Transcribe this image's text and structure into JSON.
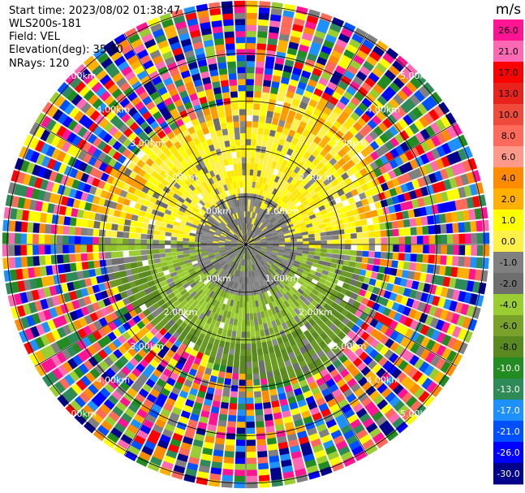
{
  "info": {
    "start_time": "Start time: 2023/08/02 01:38:47",
    "instrument": "WLS200s-181",
    "field": "Field: VEL",
    "elevation": "Elevation(deg): 35.30",
    "nrays": "NRays: 120"
  },
  "chart_data": {
    "type": "heatmap",
    "projection": "polar-ppi",
    "field": "VEL",
    "units": "m/s",
    "n_rays": 120,
    "range_rings": [
      "1.00km",
      "2.00km",
      "3.00km",
      "4.00km",
      "5.00km"
    ],
    "colorbar": {
      "title": "m/s",
      "ticks": [
        "26.0",
        "21.0",
        "17.0",
        "13.0",
        "10.0",
        "8.0",
        "6.0",
        "4.0",
        "2.0",
        "1.0",
        "0.0",
        "-1.0",
        "-2.0",
        "-4.0",
        "-6.0",
        "-8.0",
        "-10.0",
        "-13.0",
        "-17.0",
        "-21.0",
        "-26.0",
        "-30.0"
      ],
      "colors": [
        "#ff1493",
        "#ff69b4",
        "#ff0000",
        "#e8231b",
        "#f04a3a",
        "#ff6a5a",
        "#ff9a8a",
        "#ff8c00",
        "#ffb000",
        "#ffff00",
        "#fff04a",
        "#808080",
        "#6e6e6e",
        "#9acd32",
        "#7aa22b",
        "#5a8a1f",
        "#228b22",
        "#2e8b57",
        "#1e90ff",
        "#0050ff",
        "#0000ff",
        "#00008b"
      ]
    }
  }
}
